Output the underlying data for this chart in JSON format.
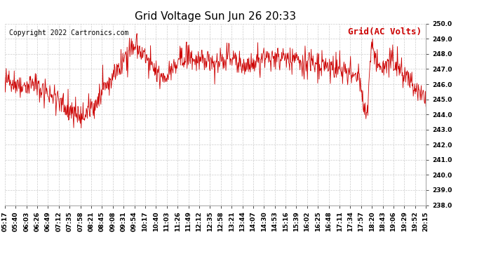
{
  "title": "Grid Voltage Sun Jun 26 20:33",
  "legend_label": "Grid(AC Volts)",
  "copyright": "Copyright 2022 Cartronics.com",
  "line_color": "#cc0000",
  "background_color": "#ffffff",
  "grid_color": "#cccccc",
  "ylim": [
    238.0,
    250.0
  ],
  "yticks": [
    238.0,
    239.0,
    240.0,
    241.0,
    242.0,
    243.0,
    244.0,
    245.0,
    246.0,
    247.0,
    248.0,
    249.0,
    250.0
  ],
  "xtick_labels": [
    "05:17",
    "05:40",
    "06:03",
    "06:26",
    "06:49",
    "07:12",
    "07:35",
    "07:58",
    "08:21",
    "08:45",
    "09:08",
    "09:31",
    "09:54",
    "10:17",
    "10:40",
    "11:03",
    "11:26",
    "11:49",
    "12:12",
    "12:35",
    "12:58",
    "13:21",
    "13:44",
    "14:07",
    "14:30",
    "14:53",
    "15:16",
    "15:39",
    "16:02",
    "16:25",
    "16:48",
    "17:11",
    "17:34",
    "17:57",
    "18:20",
    "18:43",
    "19:06",
    "19:29",
    "19:52",
    "20:15"
  ],
  "seed": 42,
  "n_points": 900,
  "title_fontsize": 11,
  "tick_fontsize": 6.5,
  "legend_fontsize": 9,
  "copyright_fontsize": 7
}
